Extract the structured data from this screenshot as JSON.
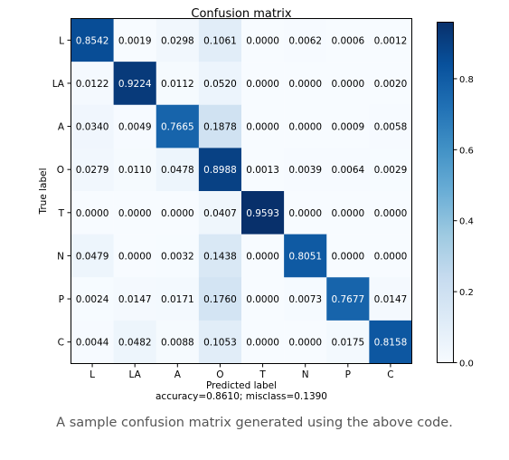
{
  "chart_data": {
    "type": "heatmap",
    "title": "Confusion matrix",
    "xlabel": "Predicted label",
    "ylabel": "True label",
    "subtitle": "accuracy=0.8610; misclass=0.1390",
    "x_categories": [
      "L",
      "LA",
      "A",
      "O",
      "T",
      "N",
      "P",
      "C"
    ],
    "y_categories": [
      "L",
      "LA",
      "A",
      "O",
      "T",
      "N",
      "P",
      "C"
    ],
    "values": [
      [
        0.8542,
        0.0019,
        0.0298,
        0.1061,
        0.0,
        0.0062,
        0.0006,
        0.0012
      ],
      [
        0.0122,
        0.9224,
        0.0112,
        0.052,
        0.0,
        0.0,
        0.0,
        0.002
      ],
      [
        0.034,
        0.0049,
        0.7665,
        0.1878,
        0.0,
        0.0,
        0.0009,
        0.0058
      ],
      [
        0.0279,
        0.011,
        0.0478,
        0.8988,
        0.0013,
        0.0039,
        0.0064,
        0.0029
      ],
      [
        0.0,
        0.0,
        0.0,
        0.0407,
        0.9593,
        0.0,
        0.0,
        0.0
      ],
      [
        0.0479,
        0.0,
        0.0032,
        0.1438,
        0.0,
        0.8051,
        0.0,
        0.0
      ],
      [
        0.0024,
        0.0147,
        0.0171,
        0.176,
        0.0,
        0.0073,
        0.7677,
        0.0147
      ],
      [
        0.0044,
        0.0482,
        0.0088,
        0.1053,
        0.0,
        0.0,
        0.0175,
        0.8158
      ]
    ],
    "colormap": "Blues",
    "colorbar": {
      "min": 0.0,
      "max": 0.9593,
      "ticks": [
        "0.0",
        "0.2",
        "0.4",
        "0.6",
        "0.8"
      ]
    },
    "grid": false
  },
  "caption": "A sample confusion matrix generated using the above code."
}
